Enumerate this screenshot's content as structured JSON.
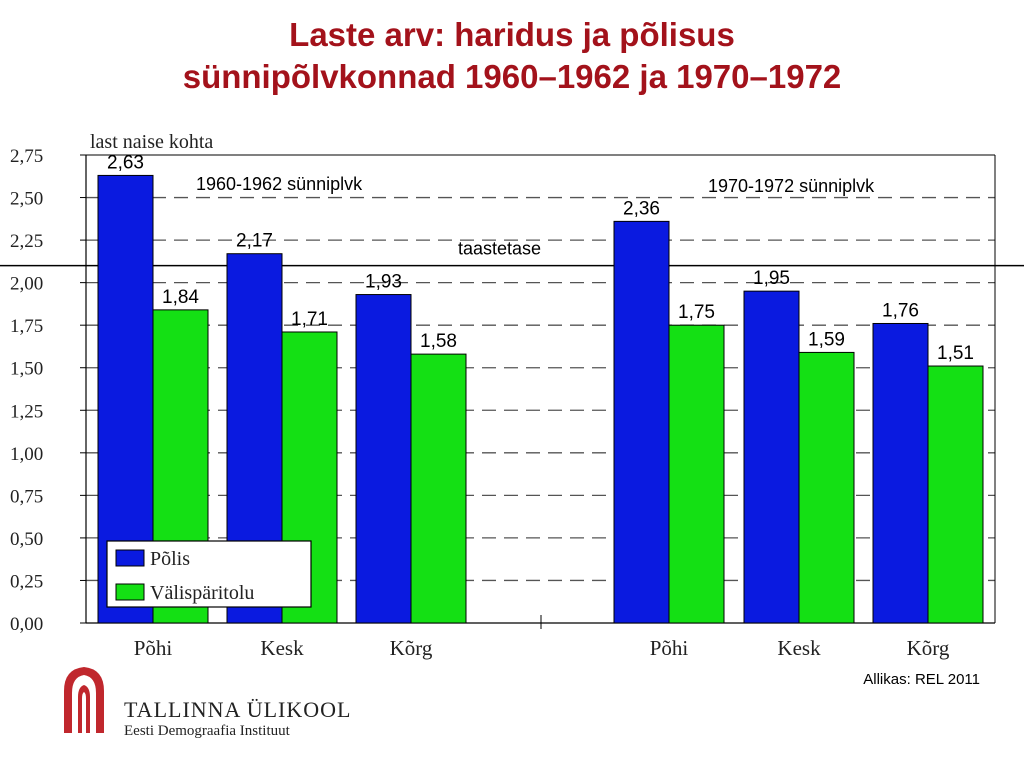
{
  "title_lines": [
    "Laste arv: haridus ja põlisus",
    "sünnipõlvkonnad 1960–1962 ja 1970–1972"
  ],
  "source": "Allikas: REL 2011",
  "branding": {
    "name": "TALLINNA ÜLIKOOL",
    "subtitle": "Eesti Demograafia Instituut",
    "logo_icon": "tallinn-university-arch-logo-icon",
    "logo_color": "#c0272d"
  },
  "chart_data": {
    "type": "bar",
    "ylabel": "last naise kohta",
    "ylim": [
      0,
      2.75
    ],
    "yticks": [
      "0,00",
      "0,25",
      "0,50",
      "0,75",
      "1,00",
      "1,25",
      "1,50",
      "1,75",
      "2,00",
      "2,25",
      "2,50",
      "2,75"
    ],
    "grid": "dashed-horizontal",
    "groups": [
      {
        "label": "1960-1962 sünniplvk",
        "categories": [
          "Põhi",
          "Kesk",
          "Kõrg"
        ],
        "series": [
          {
            "name": "Põlis",
            "values": [
              2.63,
              2.17,
              1.93
            ],
            "labels": [
              "2,63",
              "2,17",
              "1,93"
            ]
          },
          {
            "name": "Välispäritolu",
            "values": [
              1.84,
              1.71,
              1.58
            ],
            "labels": [
              "1,84",
              "1,71",
              "1,58"
            ]
          }
        ]
      },
      {
        "label": "1970-1972 sünniplvk",
        "categories": [
          "Põhi",
          "Kesk",
          "Kõrg"
        ],
        "series": [
          {
            "name": "Põlis",
            "values": [
              2.36,
              1.95,
              1.76
            ],
            "labels": [
              "2,36",
              "1,95",
              "1,76"
            ]
          },
          {
            "name": "Välispäritolu",
            "values": [
              1.75,
              1.59,
              1.51
            ],
            "labels": [
              "1,75",
              "1,59",
              "1,51"
            ]
          }
        ]
      }
    ],
    "reference_line": {
      "label": "taastetase",
      "value": 2.1
    },
    "legend": {
      "placement": "bottom-left",
      "entries": [
        {
          "name": "Põlis",
          "color": "#0a1ae0"
        },
        {
          "name": "Välispäritolu",
          "color": "#14e014"
        }
      ]
    }
  }
}
